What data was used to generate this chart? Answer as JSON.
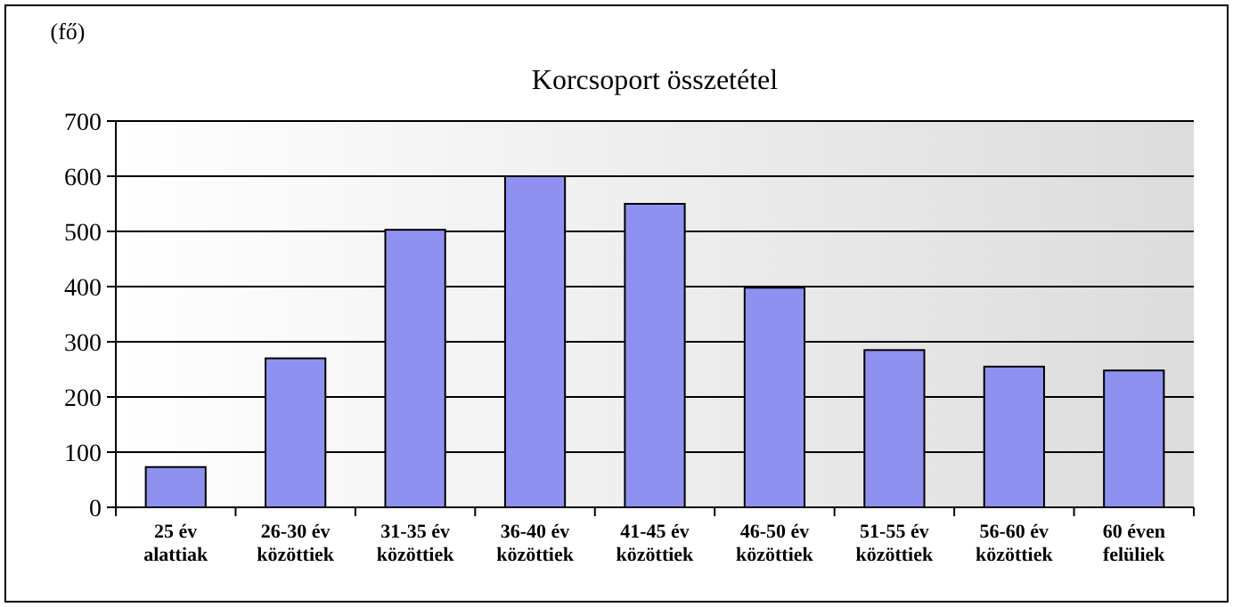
{
  "chart_data": {
    "type": "bar",
    "title": "Korcsoport összetétel",
    "ylabel": "(fő)",
    "categories": [
      "25 év alattiak",
      "26-30 év közöttiek",
      "31-35 év közöttiek",
      "36-40 év közöttiek",
      "41-45 év közöttiek",
      "46-50 év közöttiek",
      "51-55 év közöttiek",
      "56-60 év közöttiek",
      "60 éven felüliek"
    ],
    "values": [
      73,
      270,
      503,
      600,
      550,
      398,
      285,
      255,
      248
    ],
    "color": "#8f91f0",
    "ylim": [
      0,
      700
    ],
    "yticks": [
      0,
      100,
      200,
      300,
      400,
      500,
      600,
      700
    ],
    "grid": "y"
  }
}
